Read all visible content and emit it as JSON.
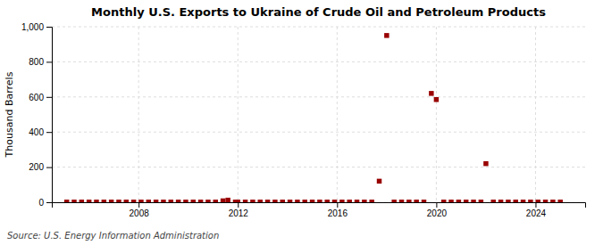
{
  "chart_data": {
    "type": "scatter",
    "title": "Monthly U.S. Exports to Ukraine of Crude Oil and Petroleum Products",
    "ylabel": "Thousand Barrels",
    "source": "Source: U.S. Energy Information Administration",
    "x": [
      2005.1,
      2005.4,
      2005.7,
      2006.0,
      2006.3,
      2006.6,
      2006.9,
      2007.2,
      2007.5,
      2007.8,
      2008.1,
      2008.4,
      2008.7,
      2009.0,
      2009.3,
      2009.6,
      2009.9,
      2010.2,
      2010.5,
      2010.8,
      2011.1,
      2011.4,
      2011.6,
      2011.9,
      2012.0,
      2012.3,
      2012.6,
      2012.9,
      2013.2,
      2013.5,
      2013.8,
      2014.1,
      2014.4,
      2014.7,
      2015.0,
      2015.3,
      2015.6,
      2015.9,
      2016.2,
      2016.5,
      2016.8,
      2017.1,
      2017.4,
      2017.7,
      2018.0,
      2018.3,
      2018.6,
      2018.9,
      2019.2,
      2019.5,
      2019.8,
      2020.0,
      2020.3,
      2020.6,
      2020.9,
      2021.2,
      2021.5,
      2021.8,
      2022.0,
      2022.3,
      2022.6,
      2022.9,
      2023.2,
      2023.5,
      2023.8,
      2024.1,
      2024.4,
      2024.7,
      2025.0
    ],
    "values": [
      1,
      1,
      1,
      1,
      1,
      1,
      1,
      1,
      1,
      1,
      1,
      1,
      1,
      1,
      1,
      1,
      1,
      1,
      1,
      1,
      1,
      8,
      12,
      1,
      1,
      1,
      1,
      1,
      1,
      1,
      1,
      1,
      1,
      1,
      1,
      1,
      1,
      1,
      1,
      1,
      1,
      1,
      1,
      120,
      950,
      1,
      1,
      1,
      1,
      1,
      620,
      585,
      1,
      1,
      1,
      1,
      1,
      1,
      220,
      1,
      1,
      1,
      1,
      1,
      1,
      1,
      1,
      1,
      1
    ],
    "color": "#990000",
    "marker": "square",
    "xlim": [
      2004.5,
      2026.0
    ],
    "xticks": [
      2008,
      2012,
      2016,
      2020,
      2024
    ],
    "ylim": [
      0,
      1000
    ],
    "yticks": [
      0,
      200,
      400,
      600,
      800,
      {
        "value": 1000,
        "label": "1,000"
      }
    ],
    "grid": true
  }
}
